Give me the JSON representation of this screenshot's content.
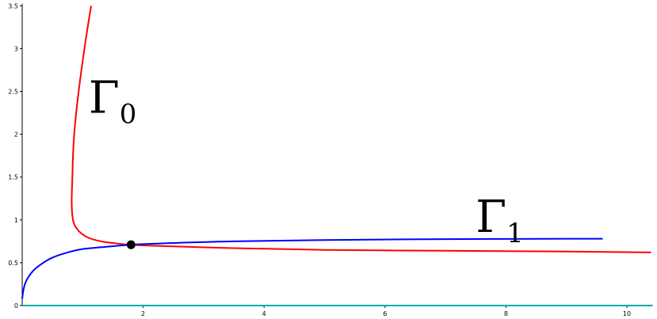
{
  "chart_data": {
    "type": "line",
    "title": "",
    "xlabel": "",
    "ylabel": "",
    "xlim": [
      0,
      10.4
    ],
    "ylim": [
      0,
      3.55
    ],
    "grid": false,
    "x_ticks": [
      2,
      4,
      6,
      8,
      10
    ],
    "x_tick_labels": [
      "2",
      "4",
      "6",
      "8",
      "10"
    ],
    "y_ticks": [
      0,
      0.5,
      1,
      1.5,
      2,
      2.5,
      3,
      3.5
    ],
    "y_tick_labels": [
      "0",
      "0.5",
      "1",
      "1.5",
      "2",
      "2.5",
      "3",
      "3.5"
    ],
    "series": [
      {
        "name": "Γ0",
        "label_main": "Γ",
        "label_sub": "0",
        "color": "#ff0000",
        "x": [
          1.14,
          1.05,
          0.97,
          0.9,
          0.86,
          0.84,
          0.83,
          0.82,
          0.82,
          0.83,
          0.85,
          0.9,
          0.98,
          1.1,
          1.3,
          1.5,
          1.8,
          2.5,
          3.5,
          5,
          7,
          9,
          10.4
        ],
        "y": [
          3.5,
          3.1,
          2.7,
          2.3,
          2.0,
          1.75,
          1.5,
          1.3,
          1.15,
          1.05,
          0.97,
          0.9,
          0.84,
          0.79,
          0.75,
          0.73,
          0.71,
          0.69,
          0.67,
          0.65,
          0.64,
          0.63,
          0.62
        ]
      },
      {
        "name": "Γ1",
        "label_main": "Γ",
        "label_sub": "1",
        "color": "#0000ff",
        "x": [
          0.0,
          0.02,
          0.05,
          0.1,
          0.2,
          0.35,
          0.5,
          0.75,
          1.0,
          1.3,
          1.8,
          2.5,
          3.5,
          5,
          7,
          9,
          9.6
        ],
        "y": [
          0.08,
          0.18,
          0.26,
          0.33,
          0.42,
          0.5,
          0.56,
          0.62,
          0.66,
          0.68,
          0.71,
          0.73,
          0.75,
          0.765,
          0.775,
          0.78,
          0.78
        ]
      },
      {
        "name": "",
        "color": "#00aaaa",
        "x": [
          0,
          10.4
        ],
        "y": [
          0,
          0
        ]
      }
    ],
    "points": [
      {
        "x": 1.8,
        "y": 0.71,
        "color": "#000000"
      }
    ]
  }
}
